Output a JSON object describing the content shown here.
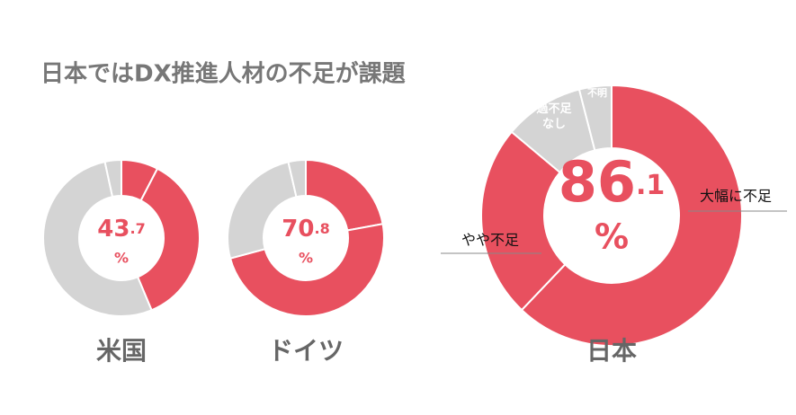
{
  "title": "日本ではDX推進人材の不足が課題",
  "chart_data": [
    {
      "type": "donut",
      "title": "米国",
      "total": 43.7,
      "unit": "%",
      "values": [
        7.6,
        36.1,
        52.9,
        3.4
      ],
      "colors": [
        "#e8505f",
        "#e8505f",
        "#d4d4d4",
        "#d4d4d4"
      ]
    },
    {
      "type": "donut",
      "title": "ドイツ",
      "total": 70.8,
      "unit": "%",
      "values": [
        22.1,
        48.7,
        25.6,
        3.6
      ],
      "colors": [
        "#e8505f",
        "#e8505f",
        "#d4d4d4",
        "#d4d4d4"
      ]
    },
    {
      "type": "donut",
      "title": "日本",
      "total": 86.1,
      "unit": "%",
      "labels": [
        "大幅に不足",
        "やや不足",
        "過不足なし",
        "不明"
      ],
      "values": [
        62.1,
        24.0,
        9.9,
        4.0
      ],
      "colors": [
        "#e8505f",
        "#e8505f",
        "#d4d4d4",
        "#d4d4d4"
      ]
    }
  ]
}
